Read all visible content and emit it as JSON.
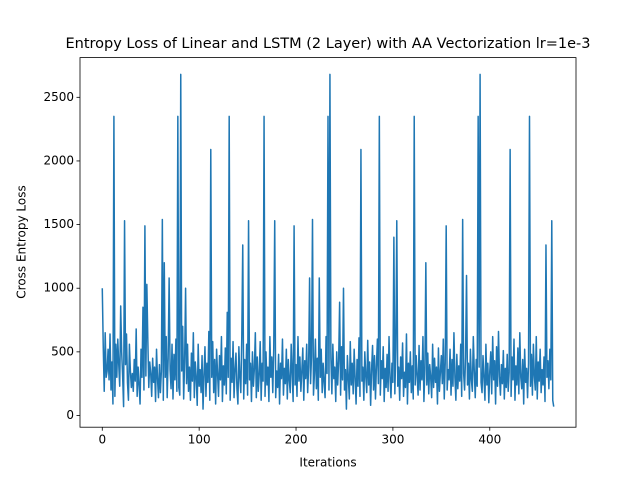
{
  "chart_data": {
    "type": "line",
    "title": "Entropy Loss of Linear and LSTM (2 Layer) with AA Vectorization lr=1e-3",
    "x_label": "Iterations",
    "y_label": "Cross Entropy Loss",
    "color": "#1f77b4",
    "xlim": [
      -23,
      489
    ],
    "ylim": [
      -92,
      2812
    ],
    "xticks": [
      0,
      100,
      200,
      300,
      400
    ],
    "yticks": [
      0,
      500,
      1000,
      1500,
      2000,
      2500
    ],
    "grid": false,
    "values": [
      1000,
      540,
      190,
      650,
      300,
      350,
      520,
      280,
      640,
      200,
      420,
      90,
      2350,
      150,
      560,
      300,
      600,
      400,
      230,
      860,
      500,
      310,
      70,
      1530,
      400,
      640,
      260,
      120,
      560,
      350,
      220,
      330,
      190,
      440,
      270,
      680,
      150,
      380,
      240,
      90,
      520,
      300,
      850,
      200,
      1490,
      310,
      1030,
      600,
      220,
      420,
      330,
      150,
      450,
      260,
      380,
      110,
      520,
      290,
      140,
      400,
      180,
      350,
      1540,
      120,
      1200,
      300,
      620,
      140,
      450,
      1080,
      360,
      210,
      560,
      130,
      480,
      280,
      600,
      190,
      2350,
      220,
      160,
      2680,
      350,
      700,
      130,
      420,
      1000,
      250,
      560,
      190,
      380,
      120,
      490,
      270,
      650,
      140,
      420,
      300,
      80,
      560,
      230,
      360,
      180,
      470,
      50,
      320,
      540,
      150,
      410,
      260,
      660,
      120,
      2090,
      300,
      580,
      180,
      440,
      90,
      520,
      330,
      150,
      470,
      280,
      620,
      110,
      390,
      240,
      530,
      170,
      810,
      300,
      2350,
      120,
      450,
      260,
      580,
      140,
      360,
      490,
      210,
      90,
      540,
      300,
      180,
      620,
      1340,
      130,
      440,
      250,
      560,
      160,
      1530,
      280,
      410,
      110,
      500,
      230,
      370,
      650,
      140,
      460,
      190,
      320,
      580,
      120,
      410,
      270,
      2350,
      150,
      500,
      240,
      380,
      110,
      620,
      300,
      460,
      180,
      530,
      1530,
      140,
      350,
      220,
      480,
      90,
      410,
      290,
      600,
      160,
      370,
      250,
      520,
      130,
      440,
      280,
      180,
      560,
      330,
      110,
      1490,
      240,
      400,
      150,
      620,
      270,
      460,
      190,
      350,
      530,
      120,
      430,
      290,
      560,
      180,
      380,
      1080,
      250,
      470,
      1540,
      160,
      330,
      600,
      210,
      450,
      120,
      1080,
      300,
      520,
      180,
      410,
      260,
      140,
      620,
      330,
      2350,
      200,
      2680,
      450,
      170,
      560,
      290,
      380,
      110,
      500,
      240,
      430,
      890,
      160,
      540,
      280,
      1000,
      200,
      360,
      50,
      470,
      300,
      130,
      580,
      240,
      410,
      170,
      520,
      290,
      90,
      440,
      230,
      610,
      150,
      2090,
      270,
      380,
      120,
      500,
      310,
      180,
      590,
      240,
      420,
      80,
      360,
      550,
      200,
      470,
      130,
      390,
      600,
      250,
      2350,
      160,
      430,
      290,
      540,
      110,
      370,
      220,
      480,
      190,
      620,
      300,
      140,
      410,
      260,
      1400,
      170,
      520,
      1530,
      230,
      380,
      120,
      460,
      290,
      570,
      150,
      340,
      220,
      640,
      90,
      410,
      260,
      500,
      180,
      390,
      130,
      2350,
      240,
      470,
      310,
      160,
      550,
      200,
      430,
      280,
      620,
      110,
      360,
      1200,
      240,
      490,
      170,
      400,
      300,
      140,
      560,
      220,
      450,
      260,
      380,
      90,
      530,
      190,
      340,
      470,
      250,
      600,
      130,
      410,
      1490,
      200,
      360,
      280,
      520,
      160,
      440,
      230,
      650,
      300,
      120,
      480,
      210,
      390,
      270,
      560,
      150,
      1540,
      330,
      200,
      460,
      1100,
      240,
      410,
      130,
      520,
      280,
      190,
      620,
      350,
      140,
      440,
      230,
      2350,
      380,
      2680,
      260,
      180,
      470,
      300,
      120,
      560,
      240,
      410,
      100,
      350,
      500,
      170,
      620,
      280,
      430,
      90,
      540,
      230,
      660,
      310,
      160,
      400,
      250,
      510,
      130,
      370,
      220,
      480,
      190,
      340,
      2090,
      150,
      460,
      280,
      600,
      120,
      390,
      240,
      530,
      170,
      650,
      300,
      210,
      440,
      90,
      520,
      260,
      370,
      140,
      410,
      2350,
      230,
      480,
      160,
      560,
      310,
      200,
      620,
      130,
      420,
      270,
      520,
      180,
      360,
      240,
      460,
      110,
      1340,
      300,
      430,
      210,
      520,
      280,
      1530,
      120,
      70
    ]
  }
}
